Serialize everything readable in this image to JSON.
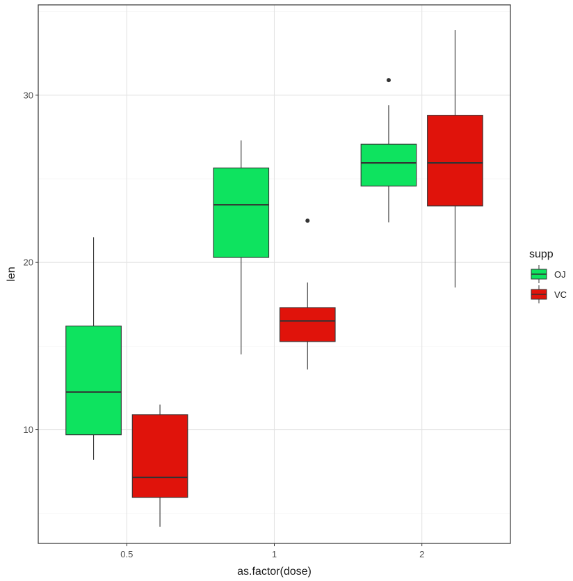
{
  "chart_data": {
    "type": "boxplot",
    "xlabel": "as.factor(dose)",
    "ylabel": "len",
    "categories": [
      "0.5",
      "1",
      "2"
    ],
    "ylim": [
      3.2,
      35.4
    ],
    "yticks": [
      10,
      20,
      30
    ],
    "grid": true,
    "legend": {
      "title": "supp",
      "position": "right",
      "entries": [
        {
          "name": "OJ",
          "color": "#0ee35f"
        },
        {
          "name": "VC",
          "color": "#e0130b"
        }
      ]
    },
    "series": [
      {
        "name": "OJ",
        "color": "#0ee35f",
        "boxes": [
          {
            "category": "0.5",
            "whisker_low": 8.2,
            "q1": 9.7,
            "median": 12.25,
            "q3": 16.2,
            "whisker_high": 21.5,
            "outliers": []
          },
          {
            "category": "1",
            "whisker_low": 14.5,
            "q1": 20.3,
            "median": 23.45,
            "q3": 25.65,
            "whisker_high": 27.3,
            "outliers": []
          },
          {
            "category": "2",
            "whisker_low": 22.4,
            "q1": 24.57,
            "median": 25.95,
            "q3": 27.07,
            "whisker_high": 29.4,
            "outliers": [
              30.9
            ]
          }
        ]
      },
      {
        "name": "VC",
        "color": "#e0130b",
        "boxes": [
          {
            "category": "0.5",
            "whisker_low": 4.2,
            "q1": 5.95,
            "median": 7.15,
            "q3": 10.9,
            "whisker_high": 11.5,
            "outliers": []
          },
          {
            "category": "1",
            "whisker_low": 13.6,
            "q1": 15.27,
            "median": 16.5,
            "q3": 17.3,
            "whisker_high": 18.8,
            "outliers": [
              22.5
            ]
          },
          {
            "category": "2",
            "whisker_low": 18.5,
            "q1": 23.38,
            "median": 25.95,
            "q3": 28.8,
            "whisker_high": 33.9,
            "outliers": []
          }
        ]
      }
    ]
  }
}
